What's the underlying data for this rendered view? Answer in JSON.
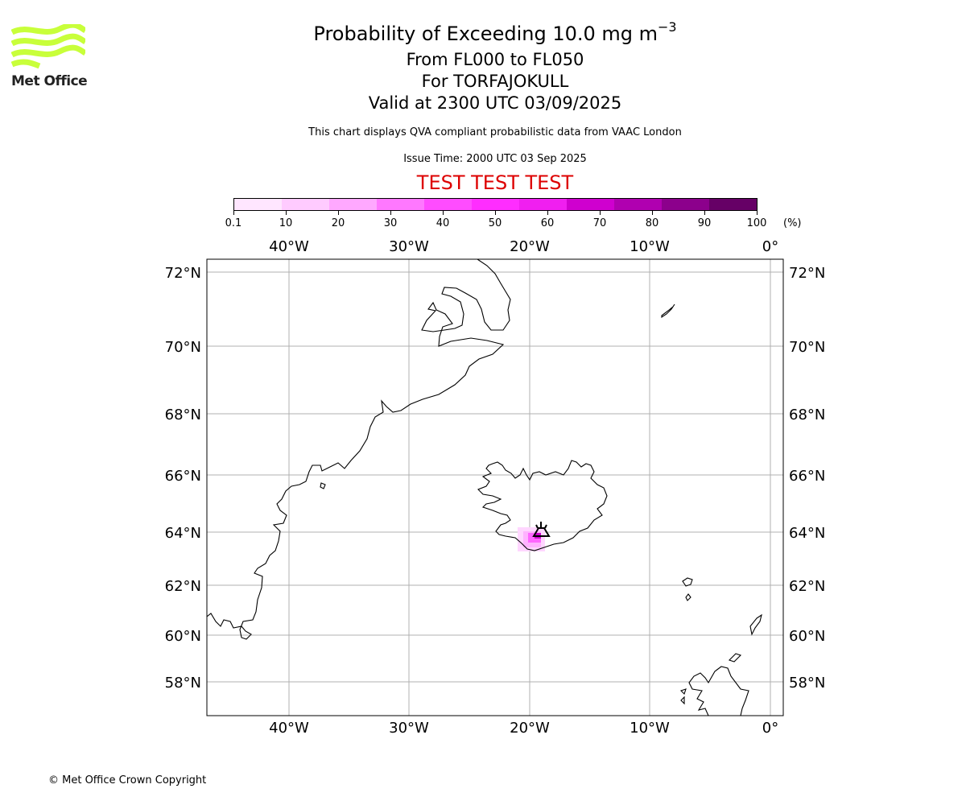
{
  "title": {
    "main_prefix": "Probability of Exceeding 10.0 mg m",
    "main_superscript": "−3",
    "flight_levels": "From FL000 to FL050",
    "volcano": "For TORFAJOKULL",
    "valid": "Valid at 2300 UTC 03/09/2025"
  },
  "subtitle": "This chart displays QVA compliant probabilistic data from VAAC London",
  "issue_time": "Issue Time: 2000 UTC 03 Sep 2025",
  "test_banner": "TEST TEST TEST",
  "logo": {
    "name": "Met Office",
    "color": "#c8ff3a"
  },
  "colorbar": {
    "labels": [
      "0.1",
      "10",
      "20",
      "30",
      "40",
      "50",
      "60",
      "70",
      "80",
      "90",
      "100"
    ],
    "unit": "(%)",
    "colors": [
      "#ffe6ff",
      "#ffcbff",
      "#ffa8ff",
      "#ff78ff",
      "#ff4cff",
      "#ff2dff",
      "#f01ff0",
      "#cf00cf",
      "#b000b0",
      "#8c008c",
      "#660066"
    ]
  },
  "map": {
    "lon_labels": [
      "40°W",
      "30°W",
      "20°W",
      "10°W",
      "0°"
    ],
    "lat_labels": [
      "72°N",
      "70°N",
      "68°N",
      "66°N",
      "64°N",
      "62°N",
      "60°N",
      "58°N"
    ],
    "volcano_marker": "volcano-symbol",
    "plume_color_light": "#ffb3ff",
    "plume_color_mid": "#ff66ff",
    "plume_color_dark": "#cc00cc"
  },
  "copyright": "© Met Office Crown Copyright"
}
